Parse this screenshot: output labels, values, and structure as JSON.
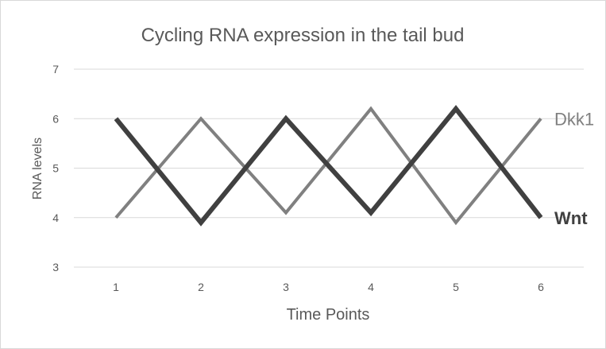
{
  "chart_data": {
    "type": "line",
    "title": "Cycling RNA expression in the tail bud",
    "xlabel": "Time Points",
    "ylabel": "RNA levels",
    "x": [
      1,
      2,
      3,
      4,
      5,
      6
    ],
    "x_tick_labels": [
      "1",
      "2",
      "3",
      "4",
      "5",
      "6"
    ],
    "y_tick_labels": [
      "3",
      "4",
      "5",
      "6",
      "7"
    ],
    "ylim": [
      3,
      7
    ],
    "grid": true,
    "legend": "series labels at line ends (right)",
    "series": [
      {
        "name": "Wnt",
        "values": [
          6,
          3.9,
          6,
          4.1,
          6.2,
          4
        ],
        "color": "#404040",
        "style": "bold"
      },
      {
        "name": "Dkk1",
        "values": [
          4,
          6,
          4.1,
          6.2,
          3.9,
          6
        ],
        "color": "#808080",
        "style": "normal"
      }
    ]
  }
}
